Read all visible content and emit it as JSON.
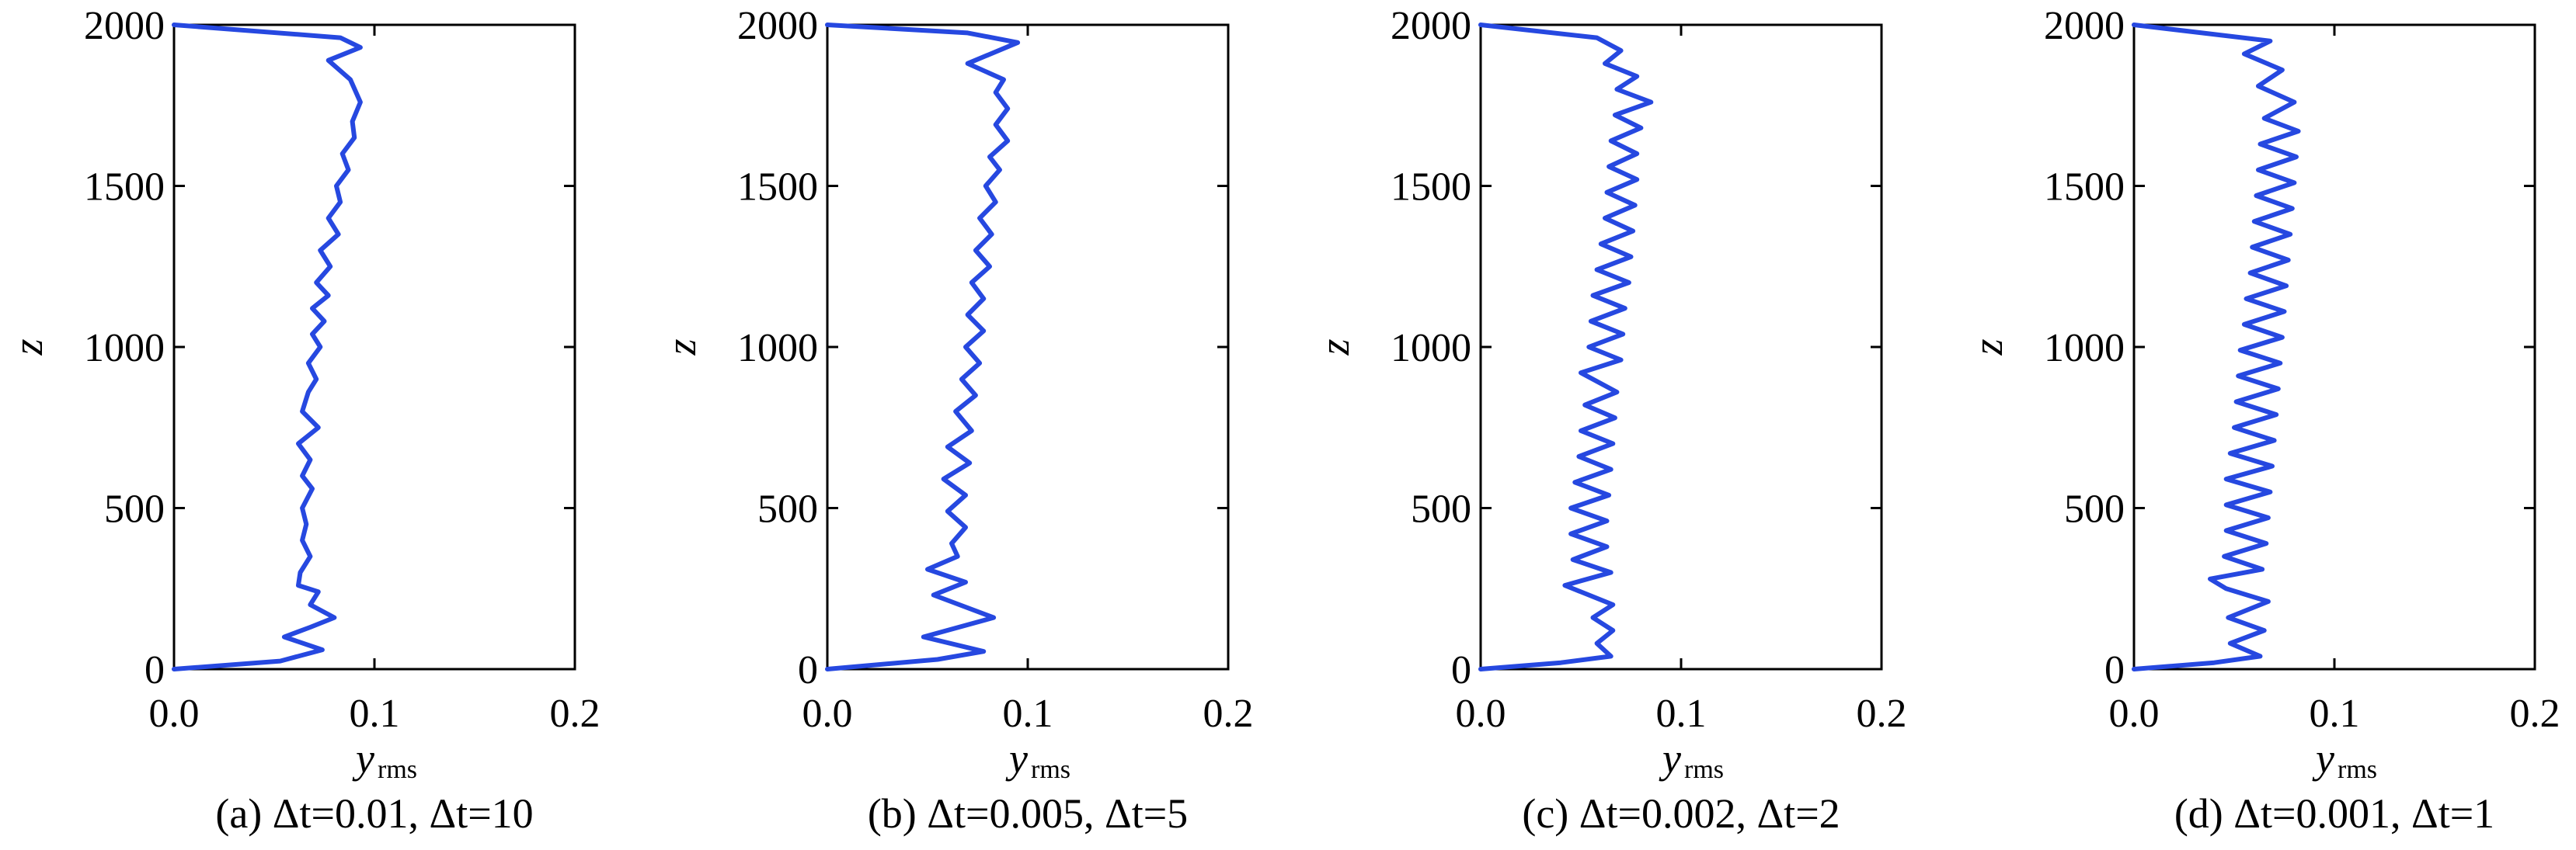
{
  "chart_data": [
    {
      "type": "line",
      "caption": "(a) Δt=0.01, Δt=10",
      "xlabel": "y",
      "xlabel_sub": "rms",
      "ylabel": "z",
      "xlim": [
        0.0,
        0.2
      ],
      "ylim": [
        0,
        2000
      ],
      "xticks": [
        "0.0",
        "0.1",
        "0.2"
      ],
      "yticks": [
        "0",
        "500",
        "1000",
        "1500",
        "2000"
      ],
      "grid": false,
      "color": "#2648e0",
      "series": [
        {
          "values": [
            [
              0.0,
              0
            ],
            [
              0.053,
              25
            ],
            [
              0.074,
              60
            ],
            [
              0.055,
              100
            ],
            [
              0.068,
              130
            ],
            [
              0.08,
              160
            ],
            [
              0.068,
              200
            ],
            [
              0.072,
              240
            ],
            [
              0.062,
              260
            ],
            [
              0.063,
              300
            ],
            [
              0.068,
              350
            ],
            [
              0.064,
              400
            ],
            [
              0.066,
              450
            ],
            [
              0.064,
              500
            ],
            [
              0.069,
              560
            ],
            [
              0.064,
              600
            ],
            [
              0.068,
              650
            ],
            [
              0.062,
              700
            ],
            [
              0.072,
              750
            ],
            [
              0.064,
              800
            ],
            [
              0.067,
              860
            ],
            [
              0.071,
              900
            ],
            [
              0.067,
              950
            ],
            [
              0.073,
              1000
            ],
            [
              0.069,
              1040
            ],
            [
              0.075,
              1080
            ],
            [
              0.069,
              1120
            ],
            [
              0.077,
              1160
            ],
            [
              0.071,
              1200
            ],
            [
              0.078,
              1250
            ],
            [
              0.073,
              1300
            ],
            [
              0.082,
              1350
            ],
            [
              0.077,
              1400
            ],
            [
              0.083,
              1450
            ],
            [
              0.081,
              1500
            ],
            [
              0.087,
              1550
            ],
            [
              0.084,
              1600
            ],
            [
              0.09,
              1650
            ],
            [
              0.089,
              1700
            ],
            [
              0.093,
              1760
            ],
            [
              0.088,
              1830
            ],
            [
              0.077,
              1890
            ],
            [
              0.093,
              1930
            ],
            [
              0.083,
              1960
            ],
            [
              0.0,
              2000
            ]
          ]
        }
      ]
    },
    {
      "type": "line",
      "caption": "(b) Δt=0.005, Δt=5",
      "xlabel": "y",
      "xlabel_sub": "rms",
      "ylabel": "z",
      "xlim": [
        0.0,
        0.2
      ],
      "ylim": [
        0,
        2000
      ],
      "xticks": [
        "0.0",
        "0.1",
        "0.2"
      ],
      "yticks": [
        "0",
        "500",
        "1000",
        "1500",
        "2000"
      ],
      "grid": false,
      "color": "#2648e0",
      "series": [
        {
          "values": [
            [
              0.0,
              0
            ],
            [
              0.055,
              30
            ],
            [
              0.078,
              55
            ],
            [
              0.048,
              100
            ],
            [
              0.083,
              160
            ],
            [
              0.053,
              230
            ],
            [
              0.069,
              270
            ],
            [
              0.05,
              310
            ],
            [
              0.065,
              350
            ],
            [
              0.062,
              390
            ],
            [
              0.069,
              440
            ],
            [
              0.06,
              490
            ],
            [
              0.069,
              540
            ],
            [
              0.058,
              590
            ],
            [
              0.071,
              640
            ],
            [
              0.06,
              690
            ],
            [
              0.072,
              740
            ],
            [
              0.064,
              800
            ],
            [
              0.074,
              850
            ],
            [
              0.067,
              900
            ],
            [
              0.076,
              950
            ],
            [
              0.069,
              1000
            ],
            [
              0.078,
              1050
            ],
            [
              0.07,
              1100
            ],
            [
              0.078,
              1150
            ],
            [
              0.072,
              1200
            ],
            [
              0.081,
              1250
            ],
            [
              0.074,
              1300
            ],
            [
              0.082,
              1350
            ],
            [
              0.076,
              1400
            ],
            [
              0.084,
              1450
            ],
            [
              0.079,
              1500
            ],
            [
              0.086,
              1550
            ],
            [
              0.081,
              1590
            ],
            [
              0.09,
              1640
            ],
            [
              0.084,
              1690
            ],
            [
              0.09,
              1740
            ],
            [
              0.084,
              1790
            ],
            [
              0.088,
              1830
            ],
            [
              0.07,
              1880
            ],
            [
              0.095,
              1945
            ],
            [
              0.07,
              1975
            ],
            [
              0.0,
              2000
            ]
          ]
        }
      ]
    },
    {
      "type": "line",
      "caption": "(c) Δt=0.002, Δt=2",
      "xlabel": "y",
      "xlabel_sub": "rms",
      "ylabel": "z",
      "xlim": [
        0.0,
        0.2
      ],
      "ylim": [
        0,
        2000
      ],
      "xticks": [
        "0.0",
        "0.1",
        "0.2"
      ],
      "yticks": [
        "0",
        "500",
        "1000",
        "1500",
        "2000"
      ],
      "grid": false,
      "color": "#2648e0",
      "series": [
        {
          "values": [
            [
              0.0,
              0
            ],
            [
              0.04,
              20
            ],
            [
              0.065,
              40
            ],
            [
              0.058,
              80
            ],
            [
              0.066,
              120
            ],
            [
              0.056,
              160
            ],
            [
              0.066,
              200
            ],
            [
              0.042,
              260
            ],
            [
              0.065,
              300
            ],
            [
              0.046,
              340
            ],
            [
              0.063,
              380
            ],
            [
              0.045,
              420
            ],
            [
              0.063,
              460
            ],
            [
              0.045,
              500
            ],
            [
              0.064,
              540
            ],
            [
              0.047,
              580
            ],
            [
              0.065,
              620
            ],
            [
              0.049,
              660
            ],
            [
              0.066,
              700
            ],
            [
              0.05,
              740
            ],
            [
              0.067,
              780
            ],
            [
              0.052,
              820
            ],
            [
              0.068,
              860
            ],
            [
              0.05,
              920
            ],
            [
              0.07,
              960
            ],
            [
              0.054,
              1000
            ],
            [
              0.071,
              1040
            ],
            [
              0.055,
              1080
            ],
            [
              0.072,
              1120
            ],
            [
              0.056,
              1160
            ],
            [
              0.074,
              1200
            ],
            [
              0.058,
              1240
            ],
            [
              0.075,
              1280
            ],
            [
              0.06,
              1320
            ],
            [
              0.076,
              1360
            ],
            [
              0.062,
              1400
            ],
            [
              0.077,
              1440
            ],
            [
              0.063,
              1480
            ],
            [
              0.078,
              1520
            ],
            [
              0.064,
              1560
            ],
            [
              0.078,
              1600
            ],
            [
              0.065,
              1640
            ],
            [
              0.08,
              1680
            ],
            [
              0.067,
              1720
            ],
            [
              0.085,
              1760
            ],
            [
              0.068,
              1800
            ],
            [
              0.078,
              1840
            ],
            [
              0.062,
              1880
            ],
            [
              0.07,
              1920
            ],
            [
              0.058,
              1960
            ],
            [
              0.0,
              2000
            ]
          ]
        }
      ]
    },
    {
      "type": "line",
      "caption": "(d) Δt=0.001, Δt=1",
      "xlabel": "y",
      "xlabel_sub": "rms",
      "ylabel": "z",
      "xlim": [
        0.0,
        0.2
      ],
      "ylim": [
        0,
        2000
      ],
      "xticks": [
        "0.0",
        "0.1",
        "0.2"
      ],
      "yticks": [
        "0",
        "500",
        "1000",
        "1500",
        "2000"
      ],
      "grid": false,
      "color": "#2648e0",
      "series": [
        {
          "values": [
            [
              0.0,
              0
            ],
            [
              0.04,
              20
            ],
            [
              0.063,
              40
            ],
            [
              0.048,
              80
            ],
            [
              0.065,
              120
            ],
            [
              0.047,
              160
            ],
            [
              0.067,
              210
            ],
            [
              0.046,
              250
            ],
            [
              0.038,
              280
            ],
            [
              0.064,
              310
            ],
            [
              0.045,
              350
            ],
            [
              0.066,
              390
            ],
            [
              0.046,
              430
            ],
            [
              0.067,
              470
            ],
            [
              0.046,
              510
            ],
            [
              0.068,
              550
            ],
            [
              0.046,
              590
            ],
            [
              0.069,
              630
            ],
            [
              0.048,
              670
            ],
            [
              0.07,
              710
            ],
            [
              0.05,
              750
            ],
            [
              0.071,
              790
            ],
            [
              0.051,
              830
            ],
            [
              0.072,
              870
            ],
            [
              0.052,
              910
            ],
            [
              0.073,
              950
            ],
            [
              0.053,
              990
            ],
            [
              0.074,
              1030
            ],
            [
              0.055,
              1070
            ],
            [
              0.075,
              1110
            ],
            [
              0.056,
              1150
            ],
            [
              0.076,
              1190
            ],
            [
              0.058,
              1230
            ],
            [
              0.077,
              1270
            ],
            [
              0.059,
              1310
            ],
            [
              0.078,
              1350
            ],
            [
              0.06,
              1390
            ],
            [
              0.079,
              1430
            ],
            [
              0.061,
              1470
            ],
            [
              0.08,
              1510
            ],
            [
              0.062,
              1550
            ],
            [
              0.081,
              1590
            ],
            [
              0.063,
              1630
            ],
            [
              0.082,
              1670
            ],
            [
              0.065,
              1710
            ],
            [
              0.08,
              1760
            ],
            [
              0.062,
              1810
            ],
            [
              0.074,
              1860
            ],
            [
              0.055,
              1910
            ],
            [
              0.068,
              1950
            ],
            [
              0.0,
              2000
            ]
          ]
        }
      ]
    }
  ]
}
